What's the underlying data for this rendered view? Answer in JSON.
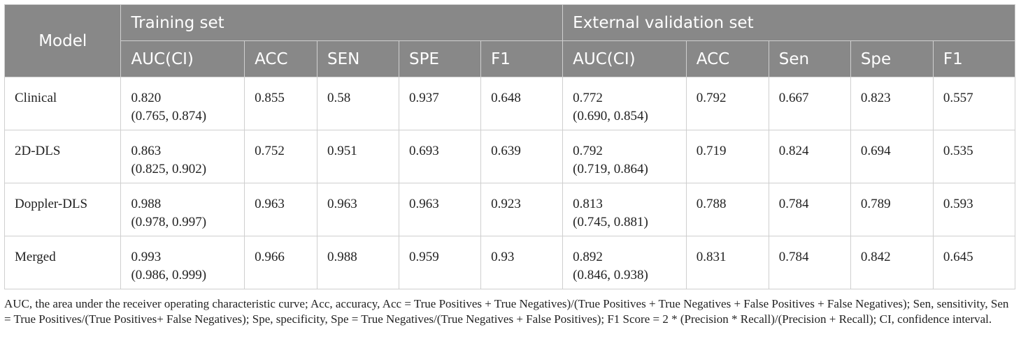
{
  "header": {
    "model": "Model",
    "training_set": "Training set",
    "external_set": "External validation set",
    "training_cols": [
      "AUC(CI)",
      "ACC",
      "SEN",
      "SPE",
      "F1"
    ],
    "external_cols": [
      "AUC(CI)",
      "ACC",
      "Sen",
      "Spe",
      "F1"
    ]
  },
  "rows": [
    {
      "model": "Clinical",
      "train": {
        "auc": "0.820",
        "ci": "(0.765, 0.874)",
        "acc": "0.855",
        "sen": "0.58",
        "spe": "0.937",
        "f1": "0.648"
      },
      "ext": {
        "auc": "0.772",
        "ci": "(0.690, 0.854)",
        "acc": "0.792",
        "sen": "0.667",
        "spe": "0.823",
        "f1": "0.557"
      }
    },
    {
      "model": "2D-DLS",
      "train": {
        "auc": "0.863",
        "ci": "(0.825, 0.902)",
        "acc": "0.752",
        "sen": "0.951",
        "spe": "0.693",
        "f1": "0.639"
      },
      "ext": {
        "auc": "0.792",
        "ci": "(0.719, 0.864)",
        "acc": "0.719",
        "sen": "0.824",
        "spe": "0.694",
        "f1": "0.535"
      }
    },
    {
      "model": "Doppler-DLS",
      "train": {
        "auc": "0.988",
        "ci": "(0.978, 0.997)",
        "acc": "0.963",
        "sen": "0.963",
        "spe": "0.963",
        "f1": "0.923"
      },
      "ext": {
        "auc": "0.813",
        "ci": "(0.745, 0.881)",
        "acc": "0.788",
        "sen": "0.784",
        "spe": "0.789",
        "f1": "0.593"
      }
    },
    {
      "model": "Merged",
      "train": {
        "auc": "0.993",
        "ci": "(0.986, 0.999)",
        "acc": "0.966",
        "sen": "0.988",
        "spe": "0.959",
        "f1": "0.93"
      },
      "ext": {
        "auc": "0.892",
        "ci": "(0.846, 0.938)",
        "acc": "0.831",
        "sen": "0.784",
        "spe": "0.842",
        "f1": "0.645"
      }
    }
  ],
  "footnote": "AUC, the area under the receiver operating characteristic curve; Acc, accuracy, Acc = True Positives + True Negatives)/(True Positives + True Negatives + False Positives + False Negatives); Sen, sensitivity, Sen = True Positives/(True Positives+ False Negatives); Spe, specificity, Spe = True Negatives/(True Negatives + False Positives); F1 Score = 2 * (Precision * Recall)/(Precision + Recall); CI, confidence interval."
}
